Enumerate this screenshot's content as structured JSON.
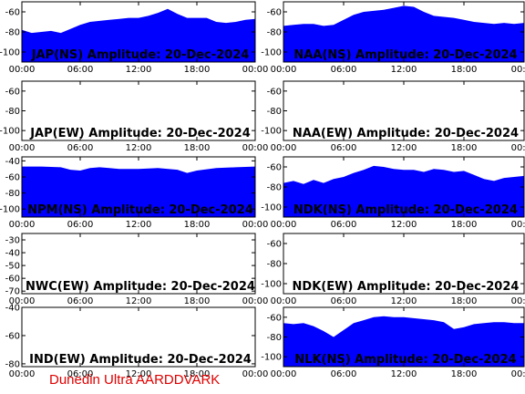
{
  "colors": {
    "fill": "#0000ff",
    "frame": "#000000",
    "background": "#ffffff",
    "footer": "#e00000"
  },
  "footer_text": "Dunedin Ultra AARDDVARK",
  "chart_data": [
    {
      "type": "area",
      "title": "JAP(NS) Amplitude: 20-Dec-2024",
      "x_ticks": [
        "00:00",
        "06:00",
        "12:00",
        "18:00",
        "00:00"
      ],
      "x_range_hours": [
        0,
        24
      ],
      "y_ticks": [
        -60,
        -80,
        -100
      ],
      "ylim": [
        -110,
        -50
      ],
      "series": [
        {
          "x": [
            0,
            1,
            2,
            3,
            4,
            5,
            6,
            7,
            8,
            9,
            10,
            11,
            12,
            13,
            14,
            15,
            16,
            17,
            18,
            19,
            20,
            21,
            22,
            23,
            24
          ],
          "upper": [
            -78,
            -81,
            -80,
            -79,
            -81,
            -77,
            -73,
            -70,
            -69,
            -68,
            -67,
            -66,
            -66,
            -64,
            -61,
            -57,
            -62,
            -66,
            -66,
            -66,
            -70,
            -71,
            -70,
            -68,
            -67
          ],
          "lower": [
            -110,
            -110,
            -110,
            -110,
            -110,
            -110,
            -110,
            -110,
            -110,
            -110,
            -110,
            -110,
            -110,
            -110,
            -110,
            -110,
            -110,
            -110,
            -110,
            -110,
            -110,
            -110,
            -110,
            -110,
            -110
          ]
        }
      ]
    },
    {
      "type": "area",
      "title": "NAA(NS) Amplitude: 20-Dec-2024",
      "x_ticks": [
        "00:00",
        "06:00",
        "12:00",
        "18:00",
        "00:00"
      ],
      "x_range_hours": [
        0,
        24
      ],
      "y_ticks": [
        -60,
        -80,
        -100
      ],
      "ylim": [
        -110,
        -50
      ],
      "series": [
        {
          "x": [
            0,
            1,
            2,
            3,
            4,
            5,
            6,
            7,
            8,
            9,
            10,
            11,
            12,
            13,
            14,
            15,
            16,
            17,
            18,
            19,
            20,
            21,
            22,
            23,
            24
          ],
          "upper": [
            -74,
            -73,
            -72,
            -72,
            -74,
            -73,
            -68,
            -63,
            -60,
            -59,
            -58,
            -56,
            -54,
            -55,
            -60,
            -64,
            -65,
            -66,
            -68,
            -70,
            -71,
            -72,
            -71,
            -72,
            -71
          ],
          "lower": [
            -110,
            -110,
            -110,
            -110,
            -110,
            -110,
            -110,
            -110,
            -110,
            -110,
            -110,
            -110,
            -110,
            -110,
            -110,
            -110,
            -110,
            -110,
            -110,
            -110,
            -110,
            -110,
            -110,
            -110,
            -110
          ]
        }
      ]
    },
    {
      "type": "area",
      "title": "JAP(EW) Amplitude: 20-Dec-2024",
      "x_ticks": [
        "00:00",
        "06:00",
        "12:00",
        "18:00",
        "00:00"
      ],
      "x_range_hours": [
        0,
        24
      ],
      "y_ticks": [
        -60,
        -80,
        -100
      ],
      "ylim": [
        -110,
        -50
      ],
      "series": []
    },
    {
      "type": "area",
      "title": "NAA(EW) Amplitude: 20-Dec-2024",
      "x_ticks": [
        "00:00",
        "06:00",
        "12:00",
        "18:00",
        "00:00"
      ],
      "x_range_hours": [
        0,
        24
      ],
      "y_ticks": [
        -60,
        -80,
        -100
      ],
      "ylim": [
        -110,
        -50
      ],
      "series": []
    },
    {
      "type": "area",
      "title": "NPM(NS) Amplitude: 20-Dec-2024",
      "x_ticks": [
        "00:00",
        "06:00",
        "12:00",
        "18:00",
        "00:00"
      ],
      "x_range_hours": [
        0,
        24
      ],
      "y_ticks": [
        -40,
        -60,
        -80,
        -100
      ],
      "ylim": [
        -110,
        -35
      ],
      "series": [
        {
          "x": [
            0,
            2,
            4,
            5,
            6,
            7,
            8,
            9,
            10,
            12,
            14,
            16,
            17,
            18,
            20,
            22,
            24
          ],
          "upper": [
            -47,
            -47,
            -48,
            -51,
            -52,
            -49,
            -48,
            -49,
            -50,
            -50,
            -49,
            -51,
            -55,
            -52,
            -49,
            -48,
            -47
          ],
          "lower": [
            -110,
            -110,
            -110,
            -110,
            -110,
            -110,
            -110,
            -110,
            -110,
            -110,
            -110,
            -110,
            -110,
            -110,
            -110,
            -110,
            -110
          ]
        }
      ]
    },
    {
      "type": "area",
      "title": "NDK(NS) Amplitude: 20-Dec-2024",
      "x_ticks": [
        "00:00",
        "06:00",
        "12:00",
        "18:00",
        "00:00"
      ],
      "x_range_hours": [
        0,
        24
      ],
      "y_ticks": [
        -60,
        -80,
        -100
      ],
      "ylim": [
        -110,
        -50
      ],
      "series": [
        {
          "x": [
            0,
            1,
            2,
            3,
            4,
            5,
            6,
            7,
            8,
            9,
            10,
            11,
            12,
            13,
            14,
            15,
            16,
            17,
            18,
            19,
            20,
            21,
            22,
            23,
            24
          ],
          "upper": [
            -76,
            -74,
            -77,
            -73,
            -76,
            -72,
            -70,
            -66,
            -63,
            -59,
            -60,
            -62,
            -63,
            -63,
            -65,
            -62,
            -63,
            -65,
            -64,
            -68,
            -72,
            -74,
            -71,
            -70,
            -69
          ],
          "lower": [
            -110,
            -110,
            -110,
            -110,
            -110,
            -110,
            -110,
            -110,
            -110,
            -110,
            -110,
            -110,
            -110,
            -110,
            -110,
            -110,
            -110,
            -110,
            -110,
            -110,
            -110,
            -110,
            -110,
            -110,
            -110
          ]
        }
      ]
    },
    {
      "type": "area",
      "title": "NWC(EW) Amplitude: 20-Dec-2024",
      "x_ticks": [
        "00:00",
        "06:00",
        "12:00",
        "18:00",
        "00:00"
      ],
      "x_range_hours": [
        0,
        24
      ],
      "y_ticks": [
        -30,
        -40,
        -50,
        -60,
        -70
      ],
      "ylim": [
        -72,
        -25
      ],
      "series": []
    },
    {
      "type": "area",
      "title": "NDK(EW) Amplitude: 20-Dec-2024",
      "x_ticks": [
        "00:00",
        "06:00",
        "12:00",
        "18:00",
        "00:00"
      ],
      "x_range_hours": [
        0,
        24
      ],
      "y_ticks": [
        -60,
        -80,
        -100
      ],
      "ylim": [
        -110,
        -50
      ],
      "series": []
    },
    {
      "type": "area",
      "title": "IND(EW) Amplitude: 20-Dec-2024",
      "x_ticks": [
        "00:00",
        "06:00",
        "12:00",
        "18:00",
        "00:00"
      ],
      "x_range_hours": [
        0,
        24
      ],
      "y_ticks": [
        -40,
        -60,
        -80
      ],
      "ylim": [
        -82,
        -40
      ],
      "series": []
    },
    {
      "type": "area",
      "title": "NLK(NS) Amplitude: 20-Dec-2024",
      "x_ticks": [
        "00:00",
        "06:00",
        "12:00",
        "18:00",
        "00:00"
      ],
      "x_range_hours": [
        0,
        24
      ],
      "y_ticks": [
        -60,
        -80,
        -100
      ],
      "ylim": [
        -110,
        -50
      ],
      "series": [
        {
          "x": [
            0,
            1,
            2,
            3,
            4,
            5,
            6,
            7,
            8,
            9,
            10,
            11,
            12,
            13,
            14,
            15,
            16,
            17,
            18,
            19,
            20,
            21,
            22,
            23,
            24
          ],
          "upper": [
            -66,
            -67,
            -66,
            -69,
            -74,
            -80,
            -73,
            -66,
            -63,
            -60,
            -59,
            -60,
            -60,
            -61,
            -62,
            -63,
            -65,
            -72,
            -70,
            -67,
            -66,
            -65,
            -65,
            -66,
            -66
          ],
          "lower": [
            -110,
            -110,
            -110,
            -110,
            -110,
            -110,
            -110,
            -110,
            -110,
            -110,
            -110,
            -110,
            -110,
            -110,
            -110,
            -110,
            -110,
            -110,
            -110,
            -110,
            -110,
            -110,
            -110,
            -110,
            -110
          ]
        }
      ]
    }
  ]
}
